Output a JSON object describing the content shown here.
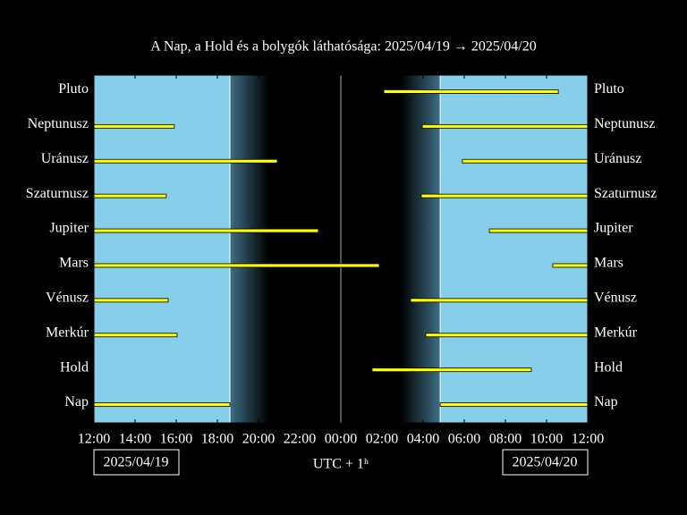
{
  "chart_data": {
    "type": "visibility",
    "title": "A Nap, a Hold és a bolygók láthatósága: 2025/04/19 → 2025/04/20",
    "x_label": "UTC + 1ʰ",
    "start_date": "2025/04/19",
    "end_date": "2025/04/20",
    "xlim": [
      12,
      36
    ],
    "xticks": [
      {
        "value": 12,
        "label": "12:00"
      },
      {
        "value": 14,
        "label": "14:00"
      },
      {
        "value": 16,
        "label": "16:00"
      },
      {
        "value": 18,
        "label": "18:00"
      },
      {
        "value": 20,
        "label": "20:00"
      },
      {
        "value": 22,
        "label": "22:00"
      },
      {
        "value": 24,
        "label": "00:00"
      },
      {
        "value": 26,
        "label": "02:00"
      },
      {
        "value": 28,
        "label": "04:00"
      },
      {
        "value": 30,
        "label": "06:00"
      },
      {
        "value": 32,
        "label": "08:00"
      },
      {
        "value": 34,
        "label": "10:00"
      },
      {
        "value": 36,
        "label": "12:00"
      }
    ],
    "sunset": 18.61,
    "dusk": 20.5,
    "dawn": 26.9,
    "sunrise": 28.83,
    "day_color": "#87ceeb",
    "night_color": "#000000",
    "bar_color": "#ffff00",
    "series": [
      {
        "name": "Pluto",
        "ranges": [
          [
            26.09,
            34.57
          ]
        ]
      },
      {
        "name": "Neptunusz",
        "ranges": [
          [
            12,
            15.91
          ],
          [
            27.96,
            36
          ]
        ]
      },
      {
        "name": "Uránusz",
        "ranges": [
          [
            12,
            20.91
          ],
          [
            29.91,
            36
          ]
        ]
      },
      {
        "name": "Szaturnusz",
        "ranges": [
          [
            12,
            15.52
          ],
          [
            27.91,
            36
          ]
        ]
      },
      {
        "name": "Jupiter",
        "ranges": [
          [
            12,
            22.91
          ],
          [
            31.22,
            36
          ]
        ]
      },
      {
        "name": "Mars",
        "ranges": [
          [
            12,
            25.87
          ],
          [
            34.3,
            36
          ]
        ]
      },
      {
        "name": "Vénusz",
        "ranges": [
          [
            12,
            15.61
          ],
          [
            27.39,
            36
          ]
        ]
      },
      {
        "name": "Merkúr",
        "ranges": [
          [
            12,
            16.04
          ],
          [
            28.13,
            36
          ]
        ]
      },
      {
        "name": "Hold",
        "ranges": [
          [
            25.52,
            33.26
          ]
        ]
      },
      {
        "name": "Nap",
        "ranges": [
          [
            12,
            18.61
          ],
          [
            28.83,
            36
          ]
        ]
      }
    ]
  }
}
